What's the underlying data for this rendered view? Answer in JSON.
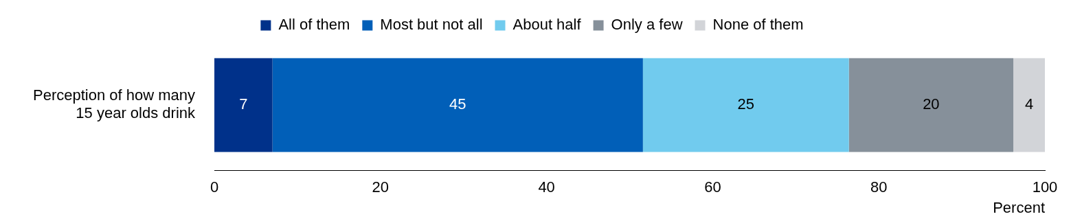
{
  "chart_data": {
    "type": "bar",
    "orientation": "horizontal",
    "stacked": true,
    "categories": [
      "Perception of how many 15 year olds drink"
    ],
    "series": [
      {
        "name": "All of them",
        "color": "#00318a",
        "values": [
          7.0
        ],
        "value_labels": [
          "7"
        ]
      },
      {
        "name": "Most but not all",
        "color": "#015fb8",
        "values": [
          44.6
        ],
        "value_labels": [
          "45"
        ]
      },
      {
        "name": "About half",
        "color": "#71cbee",
        "values": [
          24.8
        ],
        "value_labels": [
          "25"
        ]
      },
      {
        "name": "Only a few",
        "color": "#86909a",
        "values": [
          19.8
        ],
        "value_labels": [
          "20"
        ]
      },
      {
        "name": "None of them",
        "color": "#d2d4d8",
        "values": [
          3.8
        ],
        "value_labels": [
          "4"
        ]
      }
    ],
    "xlabel": "Percent",
    "xlim": [
      0,
      100
    ],
    "xticks": [
      0,
      20,
      40,
      60,
      80,
      100
    ],
    "grid": false,
    "legend": "top"
  }
}
